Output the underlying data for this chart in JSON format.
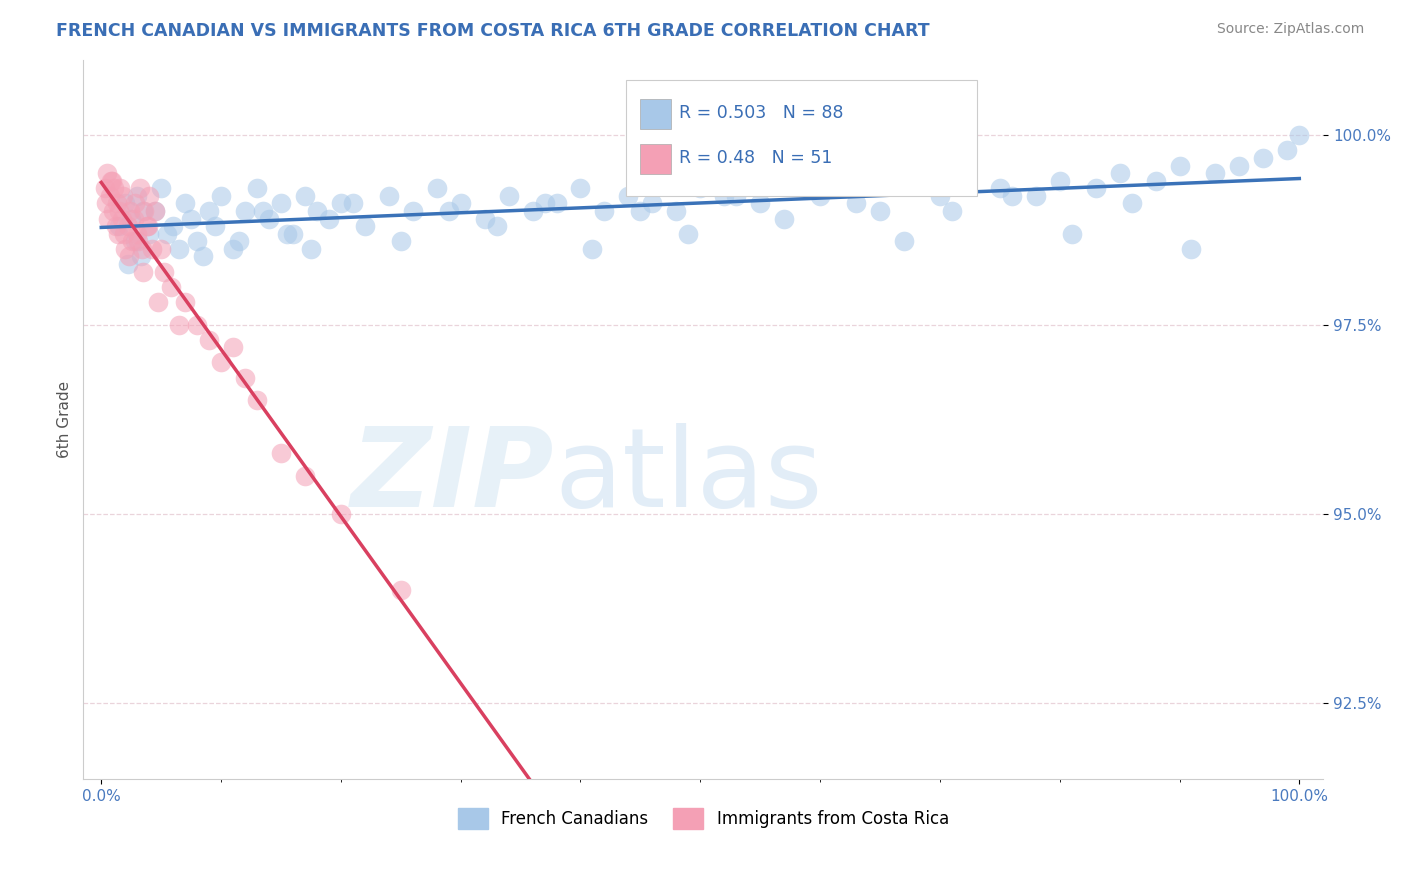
{
  "title": "FRENCH CANADIAN VS IMMIGRANTS FROM COSTA RICA 6TH GRADE CORRELATION CHART",
  "source": "Source: ZipAtlas.com",
  "ylabel": "6th Grade",
  "blue_R": 0.503,
  "blue_N": 88,
  "pink_R": 0.48,
  "pink_N": 51,
  "blue_color": "#a8c8e8",
  "pink_color": "#f4a0b5",
  "blue_line_color": "#3a72b8",
  "pink_line_color": "#d94060",
  "legend_label_blue": "French Canadians",
  "legend_label_pink": "Immigrants from Costa Rica",
  "ytick_color": "#4a7abf",
  "xtick_color": "#4a7abf",
  "title_color": "#3a6eb5",
  "source_color": "#888888",
  "ylabel_color": "#555555",
  "grid_color": "#e8d0d8",
  "blue_scatter_x": [
    1.5,
    2.0,
    2.5,
    3.0,
    3.5,
    4.0,
    5.0,
    6.0,
    7.0,
    8.0,
    9.0,
    10.0,
    11.0,
    12.0,
    13.0,
    14.0,
    15.0,
    16.0,
    17.0,
    18.0,
    20.0,
    22.0,
    24.0,
    26.0,
    28.0,
    30.0,
    32.0,
    34.0,
    36.0,
    38.0,
    40.0,
    42.0,
    44.0,
    46.0,
    48.0,
    50.0,
    52.0,
    55.0,
    58.0,
    60.0,
    62.0,
    65.0,
    68.0,
    70.0,
    72.0,
    75.0,
    78.0,
    80.0,
    83.0,
    85.0,
    88.0,
    90.0,
    93.0,
    95.0,
    97.0,
    99.0,
    100.0,
    2.2,
    2.8,
    3.3,
    4.5,
    5.5,
    6.5,
    7.5,
    8.5,
    9.5,
    11.5,
    13.5,
    15.5,
    17.5,
    19.0,
    21.0,
    25.0,
    29.0,
    33.0,
    37.0,
    41.0,
    45.0,
    49.0,
    53.0,
    57.0,
    63.0,
    67.0,
    71.0,
    76.0,
    81.0,
    86.0,
    91.0
  ],
  "blue_scatter_y": [
    98.8,
    99.1,
    98.9,
    99.2,
    99.0,
    98.7,
    99.3,
    98.8,
    99.1,
    98.6,
    99.0,
    99.2,
    98.5,
    99.0,
    99.3,
    98.9,
    99.1,
    98.7,
    99.2,
    99.0,
    99.1,
    98.8,
    99.2,
    99.0,
    99.3,
    99.1,
    98.9,
    99.2,
    99.0,
    99.1,
    99.3,
    99.0,
    99.2,
    99.1,
    99.0,
    99.3,
    99.2,
    99.1,
    99.4,
    99.2,
    99.3,
    99.0,
    99.4,
    99.2,
    99.5,
    99.3,
    99.2,
    99.4,
    99.3,
    99.5,
    99.4,
    99.6,
    99.5,
    99.6,
    99.7,
    99.8,
    100.0,
    98.3,
    98.6,
    98.4,
    99.0,
    98.7,
    98.5,
    98.9,
    98.4,
    98.8,
    98.6,
    99.0,
    98.7,
    98.5,
    98.9,
    99.1,
    98.6,
    99.0,
    98.8,
    99.1,
    98.5,
    99.0,
    98.7,
    99.2,
    98.9,
    99.1,
    98.6,
    99.0,
    99.2,
    98.7,
    99.1,
    98.5
  ],
  "pink_scatter_x": [
    0.3,
    0.5,
    0.7,
    0.8,
    1.0,
    1.1,
    1.2,
    1.3,
    1.4,
    1.6,
    1.7,
    1.8,
    2.0,
    2.2,
    2.4,
    2.6,
    2.8,
    3.0,
    3.2,
    3.4,
    3.6,
    3.8,
    4.0,
    4.5,
    5.0,
    0.4,
    0.6,
    0.9,
    1.5,
    1.9,
    2.3,
    2.7,
    3.1,
    3.5,
    3.9,
    4.2,
    4.7,
    5.2,
    5.8,
    6.5,
    7.0,
    8.0,
    9.0,
    10.0,
    11.0,
    12.0,
    13.0,
    15.0,
    17.0,
    20.0,
    25.0
  ],
  "pink_scatter_y": [
    99.3,
    99.5,
    99.2,
    99.4,
    99.0,
    99.3,
    98.8,
    99.1,
    98.7,
    99.3,
    98.9,
    99.2,
    98.5,
    98.8,
    99.0,
    98.6,
    99.1,
    98.7,
    99.3,
    98.5,
    99.0,
    98.8,
    99.2,
    99.0,
    98.5,
    99.1,
    98.9,
    99.4,
    99.0,
    98.7,
    98.4,
    98.9,
    98.6,
    98.2,
    98.8,
    98.5,
    97.8,
    98.2,
    98.0,
    97.5,
    97.8,
    97.5,
    97.3,
    97.0,
    97.2,
    96.8,
    96.5,
    95.8,
    95.5,
    95.0,
    94.0
  ]
}
